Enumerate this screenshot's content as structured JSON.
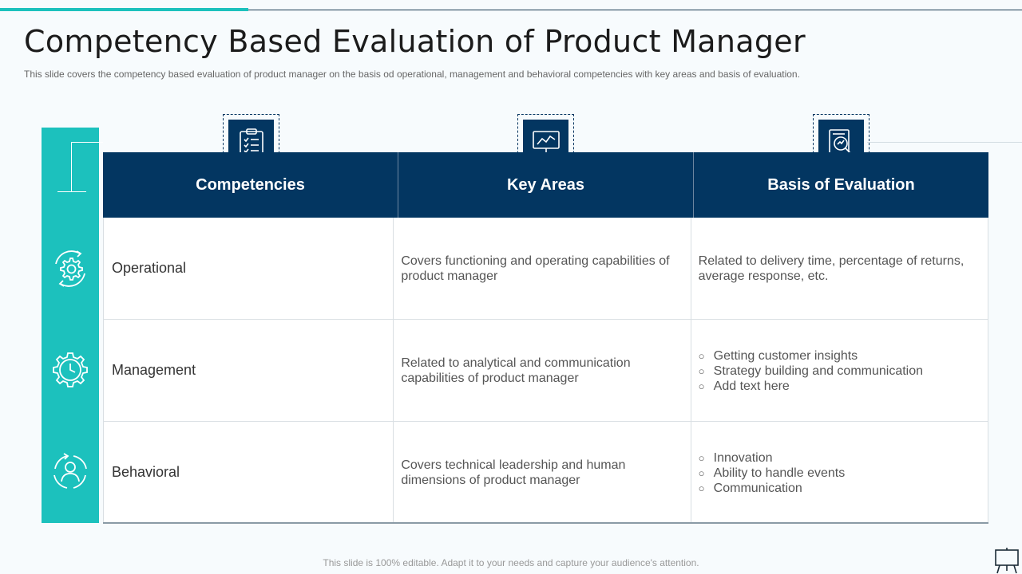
{
  "slide": {
    "title": "Competency Based Evaluation of Product Manager",
    "subtitle": "This slide covers the competency based evaluation of product manager on the basis od operational, management and behavioral competencies with key areas and basis of evaluation.",
    "footer": "This slide is 100% editable. Adapt it to your needs and capture your audience's attention."
  },
  "colors": {
    "navy": "#033661",
    "teal": "#1cc1bd"
  },
  "table": {
    "headers": [
      {
        "label": "Competencies",
        "icon": "clipboard-checklist-icon"
      },
      {
        "label": "Key Areas",
        "icon": "monitor-chart-icon"
      },
      {
        "label": "Basis of Evaluation",
        "icon": "magnifier-report-icon"
      }
    ],
    "rows": [
      {
        "icon": "gear-cycle-icon",
        "competency": "Operational",
        "key_area": "Covers functioning  and operating capabilities of product manager",
        "basis_text": "Related to delivery time, percentage of returns, average response, etc."
      },
      {
        "icon": "gear-clock-icon",
        "competency": "Management",
        "key_area": "Related to analytical  and communication capabilities of product manager",
        "basis_list": [
          "Getting customer insights",
          "Strategy building and communication",
          "Add text here"
        ]
      },
      {
        "icon": "person-cycle-icon",
        "competency": "Behavioral",
        "key_area": "Covers technical leadership and human dimensions of product manager",
        "basis_list": [
          "Innovation",
          "Ability to handle events",
          "Communication"
        ]
      }
    ]
  }
}
